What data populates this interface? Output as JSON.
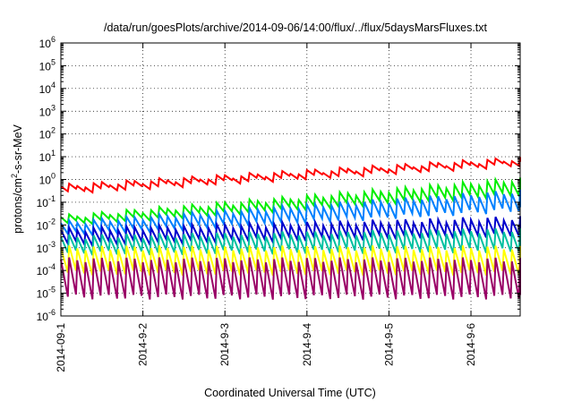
{
  "chart_data": {
    "type": "line",
    "title": "/data/run/goesPlots/archive/2014-09-06/14:00/flux/../flux/5daysMarsFluxes.txt",
    "xlabel": "Coordinated Universal Time (UTC)",
    "ylabel_parts": [
      "protons/cm",
      "2",
      "-s-sr-MeV"
    ],
    "yscale": "log",
    "ylim": [
      1e-06,
      1000000.0
    ],
    "y_ticks": [
      {
        "value": -6,
        "base": "10",
        "exp": "-6"
      },
      {
        "value": -5,
        "base": "10",
        "exp": "-5"
      },
      {
        "value": -4,
        "base": "10",
        "exp": "-4"
      },
      {
        "value": -3,
        "base": "10",
        "exp": "-3"
      },
      {
        "value": -2,
        "base": "10",
        "exp": "-2"
      },
      {
        "value": -1,
        "base": "10",
        "exp": "-1"
      },
      {
        "value": 0,
        "base": "10",
        "exp": "0"
      },
      {
        "value": 1,
        "base": "10",
        "exp": "1"
      },
      {
        "value": 2,
        "base": "10",
        "exp": "2"
      },
      {
        "value": 3,
        "base": "10",
        "exp": "3"
      },
      {
        "value": 4,
        "base": "10",
        "exp": "4"
      },
      {
        "value": 5,
        "base": "10",
        "exp": "5"
      },
      {
        "value": 6,
        "base": "10",
        "exp": "6"
      }
    ],
    "xlim_days": [
      0,
      5.6
    ],
    "x_ticks": [
      "2014-09-1",
      "2014-9-2",
      "2014-9-3",
      "2014-9-4",
      "2014-9-5",
      "2014-9-6"
    ],
    "grid": true,
    "cycle_days": 0.1,
    "series": [
      {
        "color": "#ff0000",
        "peak_start": 0.5,
        "peak_end": 8,
        "trough_start": 0.3,
        "trough_end": 5,
        "dip_after": [
          0.5,
          1.6
        ]
      },
      {
        "color": "#00ee00",
        "peak_start": 0.022,
        "peak_end": 1.0,
        "trough_start": 0.012,
        "trough_end": 0.25
      },
      {
        "color": "#0080ff",
        "peak_start": 0.012,
        "peak_end": 0.3,
        "trough_start": 0.004,
        "trough_end": 0.05
      },
      {
        "color": "#0000cc",
        "peak_start": 0.006,
        "peak_end": 0.02,
        "trough_start": 0.0015,
        "trough_end": 0.004
      },
      {
        "color": "#00c0a0",
        "peak_start": 0.003,
        "peak_end": 0.006,
        "trough_start": 0.0006,
        "trough_end": 0.0008
      },
      {
        "color": "#ffff00",
        "peak_start": 0.001,
        "peak_end": 0.001,
        "trough_start": 8e-05,
        "trough_end": 8e-05
      },
      {
        "color": "#990066",
        "peak_start": 0.0003,
        "peak_end": 0.0003,
        "trough_start": 7e-06,
        "trough_end": 7e-06
      }
    ]
  }
}
